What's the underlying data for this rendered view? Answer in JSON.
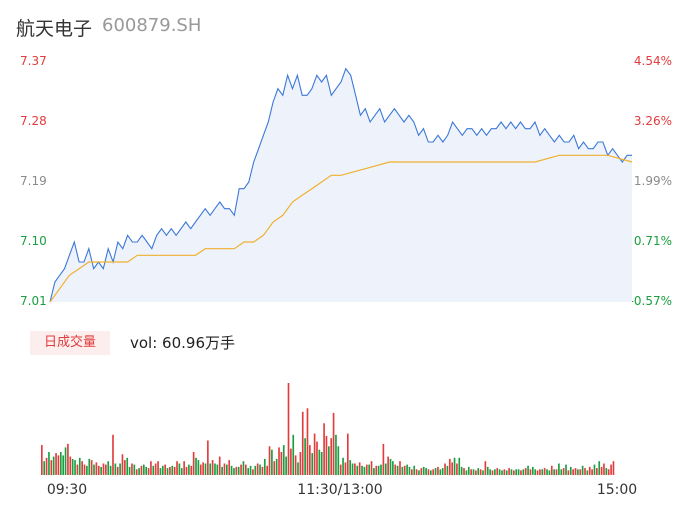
{
  "header": {
    "stock_name": "航天电子",
    "stock_code": "600879.SH"
  },
  "volume_panel": {
    "badge_label": "日成交量",
    "volume_text": "vol: 60.96万手"
  },
  "colors": {
    "up": "#e23c3c",
    "down": "#1a9e3f",
    "flat": "#8a8a8a",
    "price_line": "#3c78d8",
    "avg_line": "#f0b030",
    "area_fill": "#eef3fb"
  },
  "chart_data": [
    {
      "type": "line",
      "title": "",
      "xlabel": "",
      "ylabel": "",
      "ylim": [
        7.01,
        7.37
      ],
      "y_ticks": [
        "7.37",
        "7.28",
        "7.19",
        "7.10",
        "7.01"
      ],
      "y_tick_colors": [
        "up",
        "up",
        "flat",
        "down",
        "down"
      ],
      "pct_ticks": [
        "4.54%",
        "3.26%",
        "1.99%",
        "0.71%",
        "-0.57%"
      ],
      "pct_tick_colors": [
        "up",
        "up",
        "flat",
        "down",
        "down"
      ],
      "x_ticks": [
        "09:30",
        "11:30/13:00",
        "15:00"
      ],
      "x_tick_positions": [
        0,
        120,
        240
      ],
      "x_range": [
        0,
        240
      ],
      "grid": false,
      "series": [
        {
          "name": "price",
          "x": [
            0,
            2,
            4,
            6,
            8,
            10,
            12,
            14,
            16,
            18,
            20,
            22,
            24,
            26,
            28,
            30,
            32,
            34,
            36,
            38,
            40,
            42,
            44,
            46,
            48,
            50,
            52,
            54,
            56,
            58,
            60,
            62,
            64,
            66,
            68,
            70,
            72,
            74,
            76,
            78,
            80,
            82,
            84,
            86,
            88,
            90,
            92,
            94,
            96,
            98,
            100,
            102,
            104,
            106,
            108,
            110,
            112,
            114,
            116,
            118,
            120,
            122,
            124,
            126,
            128,
            130,
            132,
            134,
            136,
            138,
            140,
            142,
            144,
            146,
            148,
            150,
            152,
            154,
            156,
            158,
            160,
            162,
            164,
            166,
            168,
            170,
            172,
            174,
            176,
            178,
            180,
            182,
            184,
            186,
            188,
            190,
            192,
            194,
            196,
            198,
            200,
            202,
            204,
            206,
            208,
            210,
            212,
            214,
            216,
            218,
            220,
            222,
            224,
            226,
            228,
            230,
            232,
            234,
            236,
            238,
            240
          ],
          "y": [
            7.01,
            7.04,
            7.05,
            7.06,
            7.08,
            7.1,
            7.07,
            7.07,
            7.09,
            7.06,
            7.07,
            7.06,
            7.09,
            7.07,
            7.1,
            7.09,
            7.11,
            7.1,
            7.1,
            7.11,
            7.1,
            7.09,
            7.11,
            7.12,
            7.11,
            7.12,
            7.11,
            7.12,
            7.13,
            7.12,
            7.13,
            7.14,
            7.15,
            7.14,
            7.15,
            7.16,
            7.15,
            7.15,
            7.14,
            7.18,
            7.18,
            7.19,
            7.22,
            7.24,
            7.26,
            7.28,
            7.31,
            7.33,
            7.32,
            7.35,
            7.33,
            7.35,
            7.32,
            7.32,
            7.33,
            7.35,
            7.34,
            7.35,
            7.32,
            7.33,
            7.34,
            7.36,
            7.35,
            7.32,
            7.29,
            7.3,
            7.28,
            7.29,
            7.3,
            7.28,
            7.29,
            7.3,
            7.29,
            7.28,
            7.29,
            7.28,
            7.26,
            7.27,
            7.25,
            7.25,
            7.26,
            7.25,
            7.26,
            7.28,
            7.27,
            7.26,
            7.27,
            7.27,
            7.26,
            7.27,
            7.26,
            7.27,
            7.27,
            7.28,
            7.27,
            7.28,
            7.27,
            7.28,
            7.27,
            7.27,
            7.28,
            7.26,
            7.27,
            7.26,
            7.25,
            7.26,
            7.25,
            7.25,
            7.26,
            7.24,
            7.25,
            7.24,
            7.24,
            7.25,
            7.25,
            7.23,
            7.24,
            7.23,
            7.22,
            7.23,
            7.23
          ]
        },
        {
          "name": "average",
          "x": [
            0,
            4,
            8,
            12,
            16,
            20,
            24,
            28,
            32,
            36,
            40,
            44,
            48,
            52,
            56,
            60,
            64,
            68,
            72,
            76,
            80,
            84,
            88,
            92,
            96,
            100,
            104,
            108,
            112,
            116,
            120,
            130,
            140,
            150,
            160,
            170,
            180,
            190,
            200,
            210,
            220,
            230,
            240
          ],
          "y": [
            7.01,
            7.03,
            7.05,
            7.06,
            7.07,
            7.07,
            7.07,
            7.07,
            7.07,
            7.08,
            7.08,
            7.08,
            7.08,
            7.08,
            7.08,
            7.08,
            7.09,
            7.09,
            7.09,
            7.09,
            7.1,
            7.1,
            7.11,
            7.13,
            7.14,
            7.16,
            7.17,
            7.18,
            7.19,
            7.2,
            7.2,
            7.21,
            7.22,
            7.22,
            7.22,
            7.22,
            7.22,
            7.22,
            7.22,
            7.23,
            7.23,
            7.23,
            7.22
          ]
        }
      ]
    },
    {
      "type": "bar",
      "title": "",
      "xlabel": "",
      "ylabel": "",
      "x_range": [
        0,
        240
      ],
      "series": [
        {
          "name": "volume",
          "values": [
            2.6,
            1.2,
            1.5,
            2.0,
            1.3,
            1.6,
            1.9,
            1.7,
            2.0,
            1.7,
            2.4,
            2.7,
            1.6,
            1.4,
            1.3,
            0.9,
            1.5,
            1.2,
            0.9,
            0.8,
            1.4,
            1.3,
            0.9,
            1.1,
            0.8,
            0.7,
            1.0,
            0.9,
            1.2,
            0.8,
            3.5,
            1.0,
            0.7,
            1.0,
            1.8,
            1.3,
            1.5,
            0.7,
            1.0,
            0.9,
            0.5,
            0.6,
            0.8,
            0.9,
            0.7,
            0.6,
            1.2,
            0.8,
            1.0,
            1.2,
            0.6,
            0.8,
            0.9,
            0.6,
            0.7,
            0.8,
            0.7,
            1.2,
            1.0,
            0.6,
            1.2,
            0.7,
            0.9,
            0.8,
            2.0,
            1.5,
            1.3,
            0.9,
            1.1,
            1.0,
            3.0,
            1.0,
            1.3,
            1.0,
            0.9,
            1.6,
            0.7,
            1.0,
            0.9,
            1.3,
            0.8,
            0.6,
            0.7,
            0.7,
            0.9,
            1.2,
            0.9,
            0.6,
            0.8,
            0.5,
            0.8,
            1.0,
            0.9,
            0.7,
            1.4,
            0.8,
            2.5,
            2.2,
            1.2,
            1.4,
            2.4,
            2.0,
            2.6,
            1.6,
            8.0,
            2.3,
            3.5,
            1.7,
            1.1,
            2.0,
            5.5,
            3.2,
            5.8,
            2.6,
            1.9,
            3.6,
            2.9,
            2.2,
            2.0,
            4.5,
            3.4,
            2.5,
            3.2,
            5.4,
            3.5,
            2.5,
            0.9,
            1.5,
            1.1,
            3.6,
            1.3,
            1.0,
            1.0,
            0.8,
            1.1,
            0.8,
            0.7,
            0.9,
            0.9,
            1.2,
            0.6,
            0.8,
            0.8,
            0.9,
            2.7,
            1.0,
            1.6,
            1.4,
            1.2,
            0.9,
            0.8,
            1.2,
            0.7,
            0.8,
            0.9,
            0.7,
            0.5,
            0.8,
            0.5,
            0.4,
            0.6,
            0.7,
            0.6,
            0.5,
            0.4,
            0.5,
            0.6,
            0.7,
            0.5,
            0.6,
            1.0,
            0.8,
            1.4,
            1.1,
            1.5,
            1.0,
            1.5,
            0.7,
            0.6,
            0.4,
            0.7,
            0.5,
            0.5,
            0.4,
            0.6,
            0.5,
            0.4,
            1.2,
            0.7,
            0.5,
            0.4,
            0.5,
            0.6,
            0.5,
            0.4,
            0.5,
            0.4,
            0.6,
            0.5,
            0.4,
            0.5,
            0.5,
            0.4,
            0.5,
            0.6,
            0.8,
            0.5,
            0.7,
            0.5,
            0.4,
            0.5,
            0.5,
            0.6,
            0.5,
            0.4,
            0.8,
            0.5,
            0.5,
            1.0,
            0.5,
            0.6,
            0.9,
            0.4,
            0.7,
            0.5,
            0.6,
            0.5,
            0.5,
            0.8,
            0.6,
            0.4,
            0.7,
            0.5,
            0.9,
            0.6,
            1.2,
            0.7,
            1.0,
            0.6,
            0.5,
            0.9,
            1.2
          ],
          "colors": [
            "up",
            "down",
            "up",
            "down",
            "up",
            "down",
            "up",
            "up",
            "down",
            "down",
            "down",
            "up",
            "up",
            "down",
            "down",
            "up",
            "down",
            "up",
            "up",
            "down",
            "down",
            "up",
            "down",
            "up",
            "up",
            "down",
            "up",
            "up",
            "down",
            "down",
            "up",
            "down",
            "up",
            "down",
            "up",
            "up",
            "down",
            "down",
            "up",
            "down",
            "up",
            "down",
            "up",
            "down",
            "down",
            "up",
            "up",
            "down",
            "up",
            "up",
            "down",
            "down",
            "up",
            "down",
            "up",
            "down",
            "up",
            "up",
            "down",
            "down",
            "up",
            "up",
            "down",
            "up",
            "up",
            "down",
            "down",
            "up",
            "up",
            "down",
            "up",
            "down",
            "up",
            "down",
            "down",
            "up",
            "down",
            "up",
            "down",
            "up",
            "down",
            "down",
            "up",
            "down",
            "up",
            "down",
            "up",
            "down",
            "down",
            "up",
            "down",
            "up",
            "down",
            "up",
            "down",
            "up",
            "up",
            "down",
            "up",
            "down",
            "up",
            "up",
            "down",
            "down",
            "up",
            "up",
            "down",
            "up",
            "down",
            "up",
            "up",
            "down",
            "up",
            "up",
            "down",
            "up",
            "up",
            "down",
            "down",
            "up",
            "up",
            "down",
            "up",
            "up",
            "down",
            "down",
            "up",
            "down",
            "up",
            "up",
            "down",
            "down",
            "up",
            "down",
            "up",
            "down",
            "down",
            "up",
            "down",
            "up",
            "down",
            "up",
            "down",
            "down",
            "up",
            "down",
            "up",
            "down",
            "down",
            "up",
            "down",
            "up",
            "down",
            "up",
            "down",
            "down",
            "up",
            "down",
            "up",
            "down",
            "up",
            "down",
            "down",
            "up",
            "down",
            "up",
            "down",
            "up",
            "down",
            "down",
            "up",
            "down",
            "up",
            "up",
            "down",
            "up",
            "down",
            "down",
            "up",
            "down",
            "down",
            "up",
            "down",
            "up",
            "down",
            "up",
            "down",
            "up",
            "down",
            "down",
            "up",
            "down",
            "up",
            "down",
            "down",
            "up",
            "down",
            "up",
            "down",
            "up",
            "down",
            "down",
            "up",
            "down",
            "up",
            "down",
            "up",
            "down",
            "down",
            "up",
            "up",
            "down",
            "up",
            "down",
            "down",
            "up",
            "down",
            "up",
            "down",
            "down",
            "up",
            "down",
            "up",
            "down",
            "up",
            "up",
            "down",
            "up",
            "down",
            "up",
            "down",
            "up",
            "up",
            "down",
            "up",
            "down",
            "up",
            "up",
            "down",
            "up",
            "up",
            "up"
          ]
        }
      ]
    }
  ]
}
